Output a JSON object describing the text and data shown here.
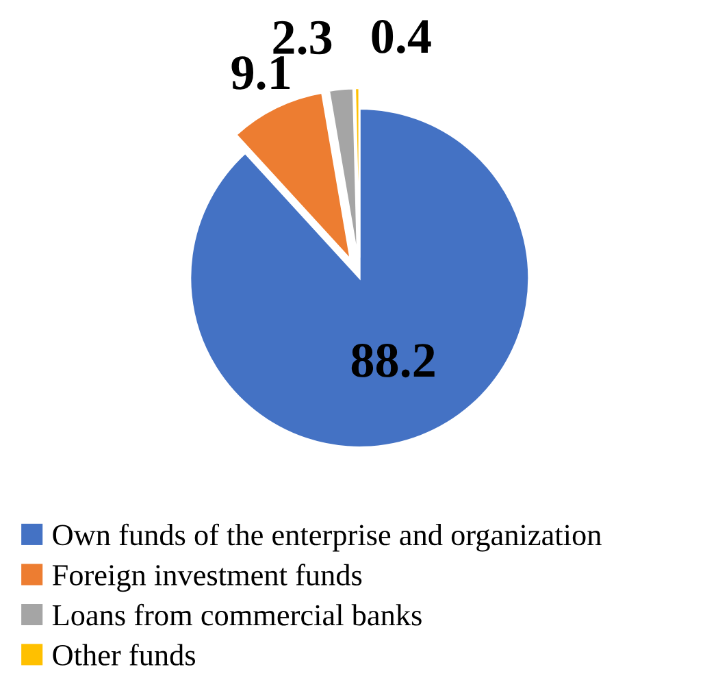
{
  "chart_data": {
    "type": "pie",
    "categories": [
      "Own funds of the enterprise and organization",
      "Foreign investment funds",
      "Loans from commercial banks",
      "Other funds"
    ],
    "values": [
      88.2,
      9.1,
      2.3,
      0.4
    ],
    "colors": [
      "#4472c4",
      "#ed7d31",
      "#a5a5a5",
      "#ffc000"
    ],
    "data_labels": true,
    "legend": "bottom"
  }
}
